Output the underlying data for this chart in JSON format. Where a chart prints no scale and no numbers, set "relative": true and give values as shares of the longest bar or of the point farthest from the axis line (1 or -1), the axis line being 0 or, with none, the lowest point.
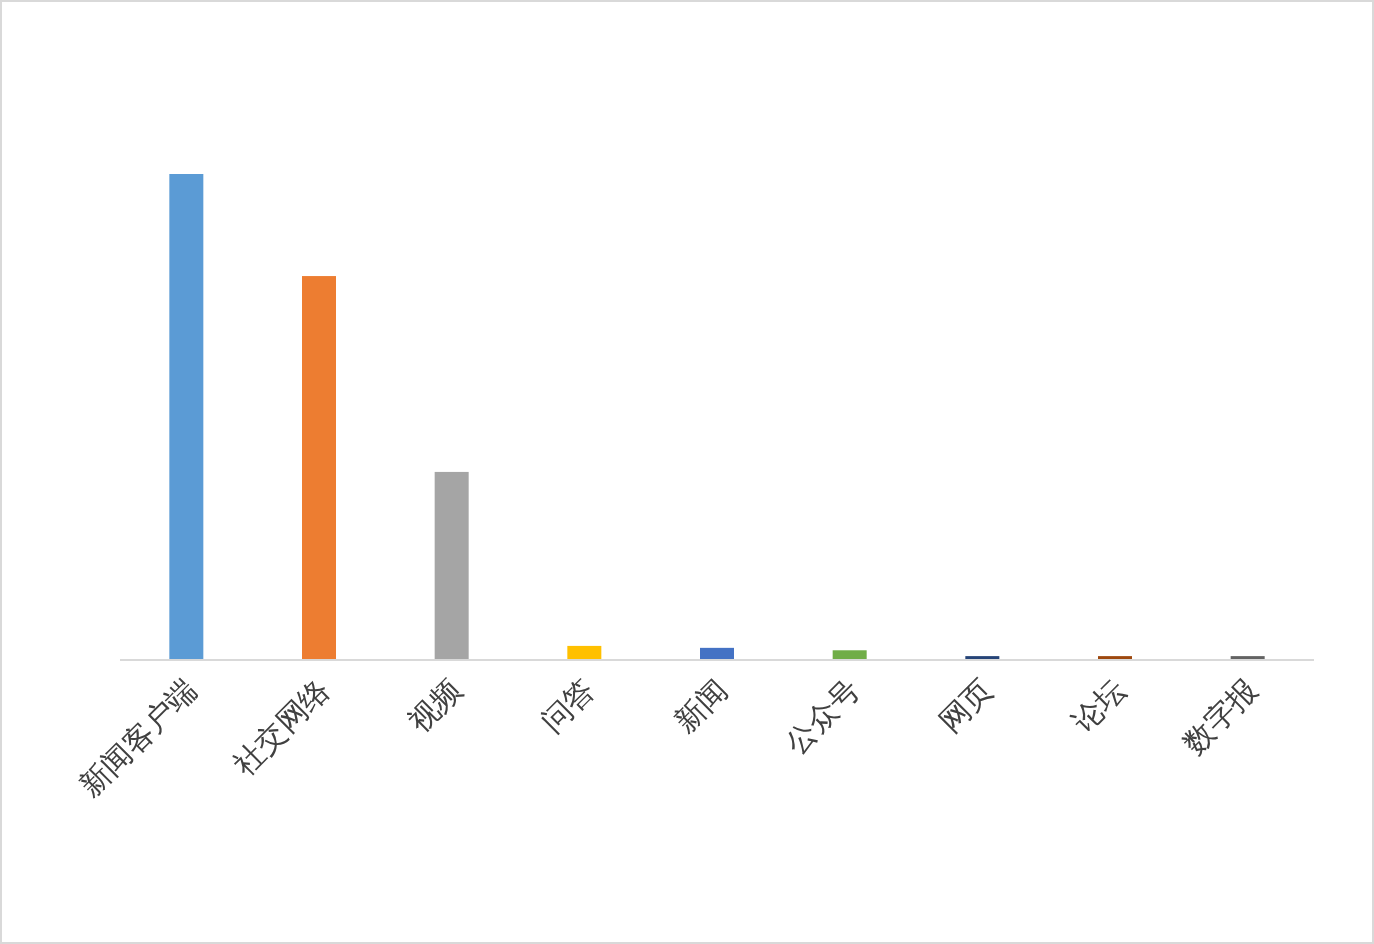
{
  "chart_data": {
    "type": "bar",
    "relative": true,
    "categories": [
      "新闻客户端",
      "社交网络",
      "视频",
      "问答",
      "新闻",
      "公众号",
      "网页",
      "论坛",
      "数字报"
    ],
    "values": [
      1,
      0.79,
      0.387,
      0.029,
      0.025,
      0.02,
      0.008,
      0.008,
      0.008
    ],
    "colors": [
      "#5b9bd5",
      "#ed7d31",
      "#a5a5a5",
      "#ffc000",
      "#4472c4",
      "#70ad47",
      "#264478",
      "#9e480e",
      "#636363"
    ]
  }
}
